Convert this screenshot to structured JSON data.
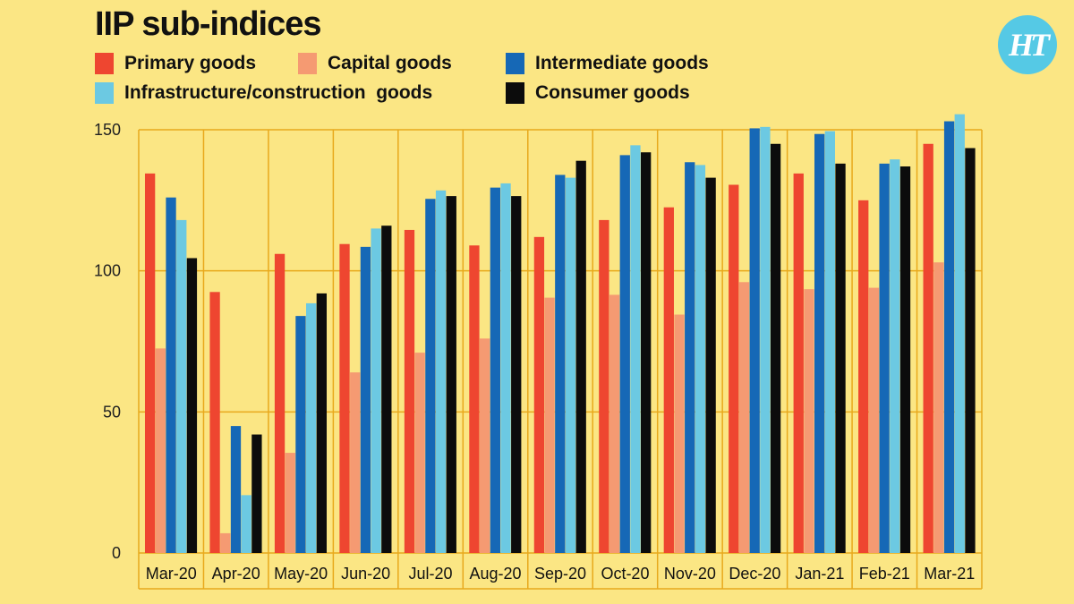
{
  "chart_data": {
    "type": "bar",
    "title": "IIP sub-indices",
    "categories": [
      "Mar-20",
      "Apr-20",
      "May-20",
      "Jun-20",
      "Jul-20",
      "Aug-20",
      "Sep-20",
      "Oct-20",
      "Nov-20",
      "Dec-20",
      "Jan-21",
      "Feb-21",
      "Mar-21"
    ],
    "series": [
      {
        "name": "Primary goods",
        "color": "#ee4630",
        "values": [
          134.5,
          92.5,
          106,
          109.5,
          114.5,
          109,
          112,
          118,
          122.5,
          130.5,
          134.5,
          125,
          145
        ]
      },
      {
        "name": "Capital goods",
        "color": "#f59a72",
        "values": [
          72.5,
          7,
          35.5,
          64,
          71,
          76,
          90.5,
          91.5,
          84.5,
          96,
          93.5,
          94,
          103
        ]
      },
      {
        "name": "Intermediate goods",
        "color": "#1668b6",
        "values": [
          126,
          45,
          84,
          108.5,
          125.5,
          129.5,
          134,
          141,
          138.5,
          150.5,
          148.5,
          138,
          153
        ]
      },
      {
        "name": "Infrastructure/construction  goods",
        "color": "#6cc9e2",
        "values": [
          118,
          20.5,
          88.5,
          115,
          128.5,
          131,
          133,
          144.5,
          137.5,
          151,
          149.5,
          139.5,
          155.5
        ]
      },
      {
        "name": "Consumer goods",
        "color": "#0c0c0c",
        "values": [
          104.5,
          42,
          92,
          116,
          126.5,
          126.5,
          139,
          142,
          133,
          145,
          138,
          137,
          143.5
        ]
      }
    ],
    "yticks": [
      0,
      50,
      100,
      150
    ],
    "ylim": [
      0,
      150
    ],
    "grid": true,
    "legend": "top"
  },
  "logo_text": "HT"
}
